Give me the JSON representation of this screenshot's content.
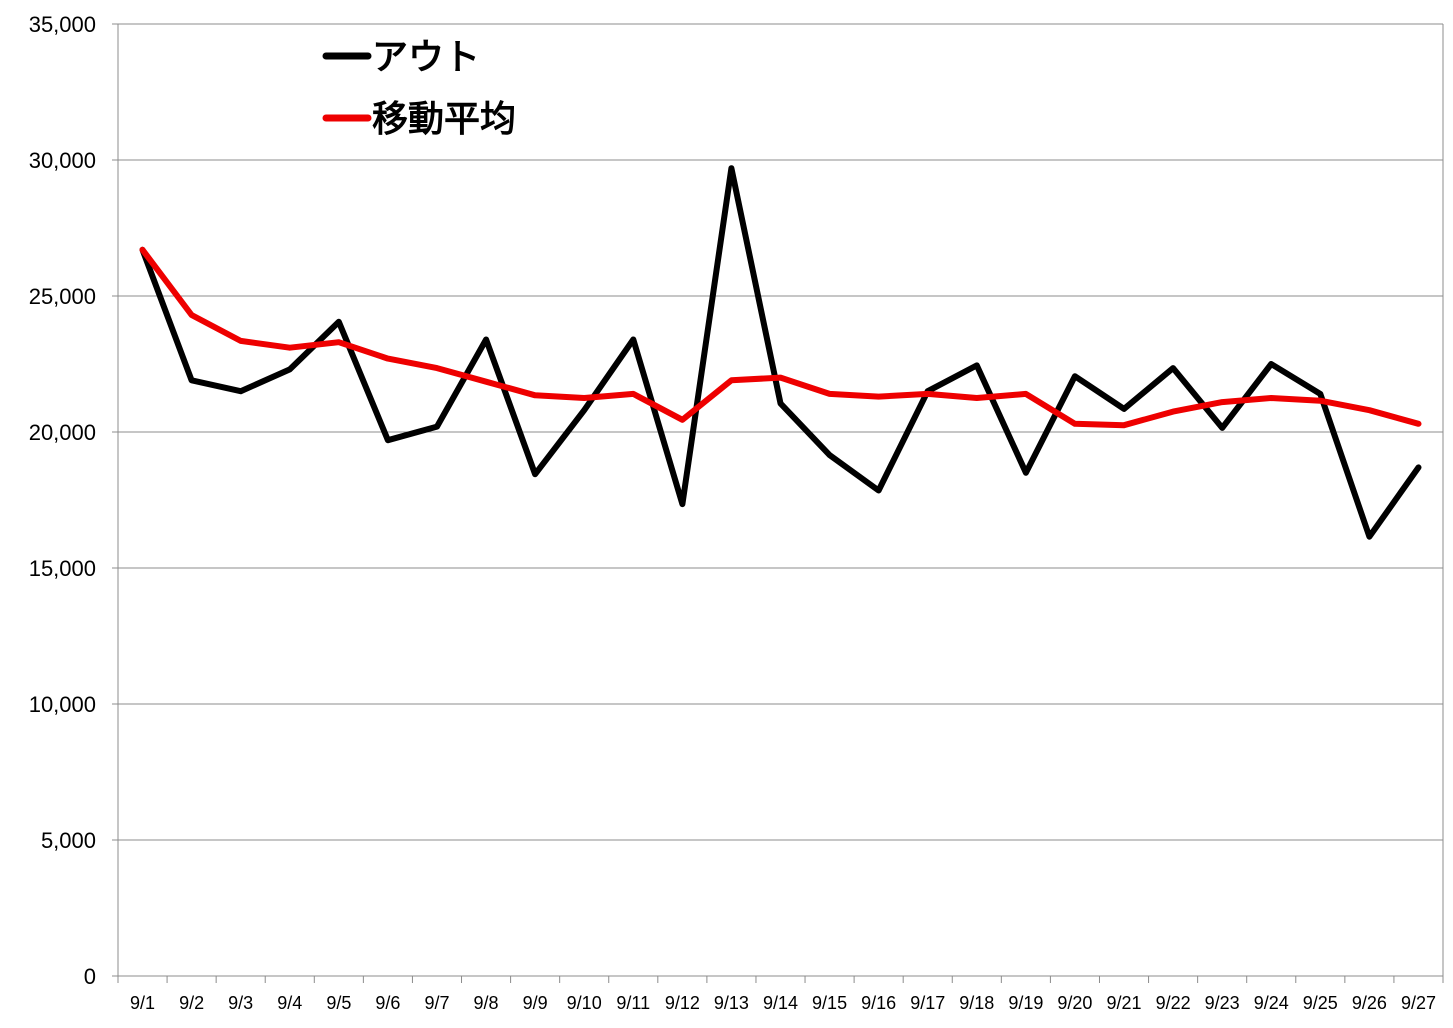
{
  "chart_data": {
    "type": "line",
    "categories": [
      "9/1",
      "9/2",
      "9/3",
      "9/4",
      "9/5",
      "9/6",
      "9/7",
      "9/8",
      "9/9",
      "9/10",
      "9/11",
      "9/12",
      "9/13",
      "9/14",
      "9/15",
      "9/16",
      "9/17",
      "9/18",
      "9/19",
      "9/20",
      "9/21",
      "9/22",
      "9/23",
      "9/24",
      "9/25",
      "9/26",
      "9/27"
    ],
    "ylim": [
      0,
      35000
    ],
    "yticks": [
      0,
      5000,
      10000,
      15000,
      20000,
      25000,
      30000,
      35000
    ],
    "ytick_labels": [
      "0",
      "5,000",
      "10,000",
      "15,000",
      "20,000",
      "25,000",
      "30,000",
      "35,000"
    ],
    "grid": true,
    "legend_position": "top-left",
    "series": [
      {
        "name": "アウト",
        "color": "#000000",
        "values": [
          26700,
          21900,
          21500,
          22300,
          24050,
          19700,
          20200,
          23400,
          18450,
          20800,
          23400,
          17350,
          29700,
          21050,
          19150,
          17850,
          21500,
          22450,
          18500,
          22050,
          20850,
          22350,
          20150,
          22500,
          21400,
          16150,
          18700
        ]
      },
      {
        "name": "移動平均",
        "color": "#ee0000",
        "values": [
          26700,
          24300,
          23350,
          23100,
          23300,
          22700,
          22350,
          21850,
          21350,
          21250,
          21400,
          20450,
          21900,
          22000,
          21400,
          21300,
          21400,
          21250,
          21400,
          20300,
          20250,
          20750,
          21100,
          21250,
          21150,
          20800,
          20300
        ]
      }
    ]
  }
}
